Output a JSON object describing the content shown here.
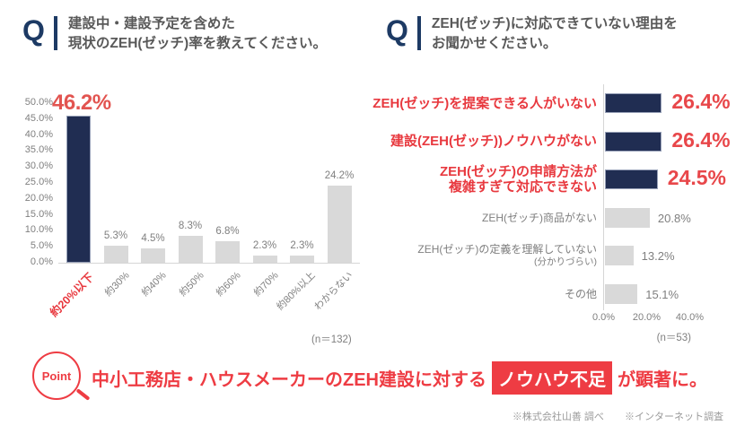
{
  "colors": {
    "navy": "#202d52",
    "navy_q": "#1d3a64",
    "accent_red": "#e8393f",
    "value_red": "#e25450",
    "bar_gray": "#d9d9d9",
    "text_gray": "#7f7f7f",
    "question_gray": "#595959",
    "footer_gray": "#9a9a9a"
  },
  "questions": {
    "left": {
      "mark": "Q",
      "lines": [
        "建設中・建設予定を含めた",
        "現状のZEH(ゼッチ)率を教えてください。"
      ]
    },
    "right": {
      "mark": "Q",
      "lines": [
        "ZEH(ゼッチ)に対応できていない理由を",
        "お聞かせください。"
      ]
    }
  },
  "chart_data": [
    {
      "type": "bar",
      "title": "建設中・建設予定を含めた現状のZEH(ゼッチ)率",
      "categories": [
        "約20%以下",
        "約30%",
        "約40%",
        "約50%",
        "約60%",
        "約70%",
        "約80%以上",
        "わからない"
      ],
      "values": [
        46.2,
        5.3,
        4.5,
        8.3,
        6.8,
        2.3,
        2.3,
        24.2
      ],
      "value_labels": [
        "46.2%",
        "5.3%",
        "4.5%",
        "8.3%",
        "6.8%",
        "2.3%",
        "2.3%",
        "24.2%"
      ],
      "highlight_index": 0,
      "xlabel": "",
      "ylabel": "",
      "ylim": [
        0,
        50
      ],
      "yticks": [
        "0.0%",
        "5.0%",
        "10.0%",
        "15.0%",
        "20.0%",
        "25.0%",
        "30.0%",
        "35.0%",
        "40.0%",
        "45.0%",
        "50.0%"
      ],
      "grid": false,
      "legend": false,
      "sample_label": "(n＝132)"
    },
    {
      "type": "bar-horizontal",
      "title": "ZEH(ゼッチ)に対応できていない理由",
      "items": [
        {
          "label_lines": [
            "ZEH(ゼッチ)を提案できる人がいない"
          ],
          "value": 26.4,
          "value_label": "26.4%",
          "emphasis": true
        },
        {
          "label_lines": [
            "建設(ZEH(ゼッチ))ノウハウがない"
          ],
          "value": 26.4,
          "value_label": "26.4%",
          "emphasis": true
        },
        {
          "label_lines": [
            "ZEH(ゼッチ)の申請方法が",
            "複雑すぎて対応できない"
          ],
          "value": 24.5,
          "value_label": "24.5%",
          "emphasis": true
        },
        {
          "label_lines": [
            "ZEH(ゼッチ)商品がない"
          ],
          "value": 20.8,
          "value_label": "20.8%",
          "emphasis": false
        },
        {
          "label_lines": [
            "ZEH(ゼッチ)の定義を理解していない",
            "(分かりづらい)"
          ],
          "value": 13.2,
          "value_label": "13.2%",
          "emphasis": false,
          "line2_small": true
        },
        {
          "label_lines": [
            "その他"
          ],
          "value": 15.1,
          "value_label": "15.1%",
          "emphasis": false
        }
      ],
      "xlim": [
        0,
        45
      ],
      "xticks": [
        "0.0%",
        "20.0%",
        "40.0%"
      ],
      "grid": false,
      "legend": false,
      "sample_label": "(n＝53)"
    }
  ],
  "point": {
    "badge_label": "Point",
    "text_before": "中小工務店・ハウスメーカーのZEH建設に対する",
    "highlight": "ノウハウ不足",
    "text_after": "が顕著に。"
  },
  "footer": {
    "note1": "※株式会社山善 調べ",
    "note2": "※インターネット調査"
  }
}
